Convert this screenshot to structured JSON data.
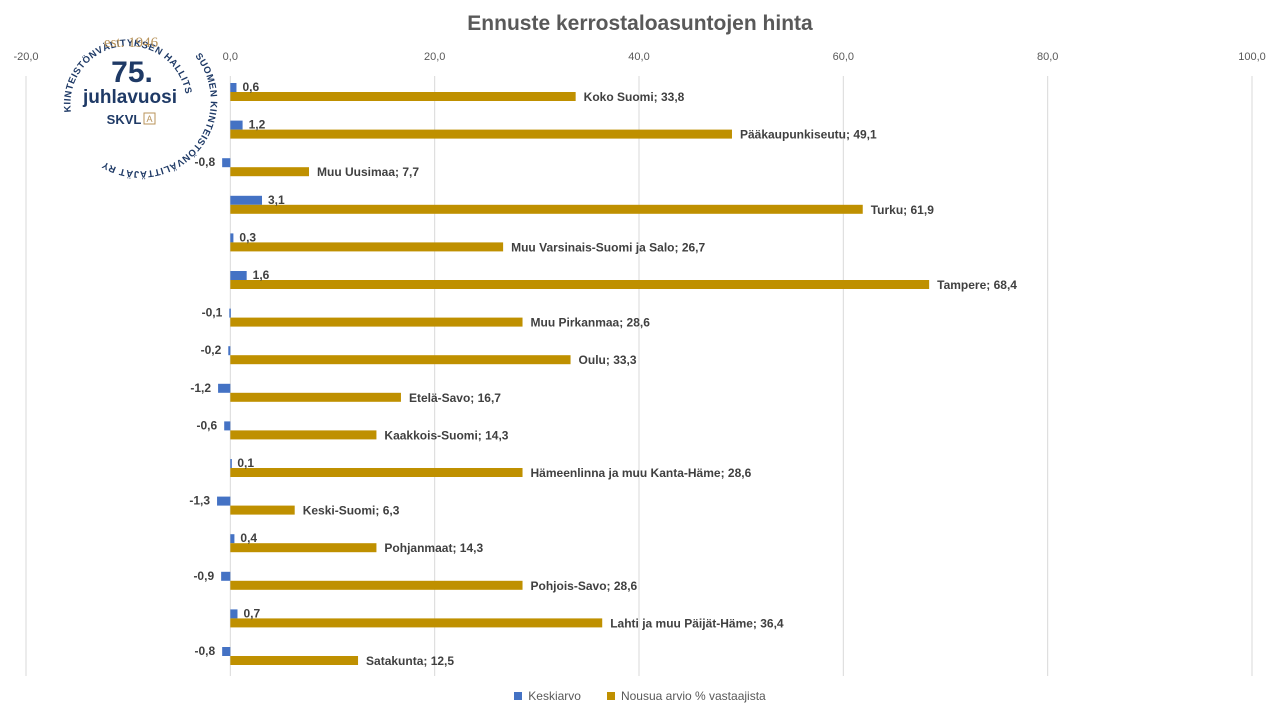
{
  "chart_data": {
    "type": "bar",
    "orientation": "horizontal",
    "title": "Ennuste kerrostaloasuntojen hinta",
    "xlim": [
      -20,
      100
    ],
    "x_ticks": [
      "-20,0",
      "0,0",
      "20,0",
      "40,0",
      "60,0",
      "80,0",
      "100,0"
    ],
    "x_tick_values": [
      -20,
      0,
      20,
      40,
      60,
      80,
      100
    ],
    "grid": true,
    "legend_position": "bottom",
    "categories": [
      "Koko Suomi",
      "Pääkaupunkiseutu",
      "Muu Uusimaa",
      "Turku",
      "Muu Varsinais-Suomi ja Salo",
      "Tampere",
      "Muu Pirkanmaa",
      "Oulu",
      "Etelä-Savo",
      "Kaakkois-Suomi",
      "Hämeenlinna ja muu Kanta-Häme",
      "Keski-Suomi",
      "Pohjanmaat",
      "Pohjois-Savo",
      "Lahti ja muu Päijät-Häme",
      "Satakunta"
    ],
    "series": [
      {
        "name": "Keskiarvo",
        "color": "#4472c4",
        "values": [
          0.6,
          1.2,
          -0.8,
          3.1,
          0.3,
          1.6,
          -0.1,
          -0.2,
          -1.2,
          -0.6,
          0.1,
          -1.3,
          0.4,
          -0.9,
          0.7,
          -0.8
        ],
        "labels": [
          "0,6",
          "1,2",
          "-0,8",
          "3,1",
          "0,3",
          "1,6",
          "-0,1",
          "-0,2",
          "-1,2",
          "-0,6",
          "0,1",
          "-1,3",
          "0,4",
          "-0,9",
          "0,7",
          "-0,8"
        ]
      },
      {
        "name": "Nousua arvio % vastaajista",
        "color": "#bf9000",
        "values": [
          33.8,
          49.1,
          7.7,
          61.9,
          26.7,
          68.4,
          28.6,
          33.3,
          16.7,
          14.3,
          28.6,
          6.3,
          14.3,
          28.6,
          36.4,
          12.5
        ],
        "labels": [
          "Koko Suomi; 33,8",
          "Pääkaupunkiseutu; 49,1",
          "Muu Uusimaa; 7,7",
          "Turku; 61,9",
          "Muu Varsinais-Suomi ja Salo; 26,7",
          "Tampere; 68,4",
          "Muu Pirkanmaa;  28,6",
          "Oulu; 33,3",
          "Etelä-Savo; 16,7",
          "Kaakkois-Suomi; 14,3",
          "Hämeenlinna ja muu Kanta-Häme; 28,6",
          "Keski-Suomi; 6,3",
          "Pohjanmaat; 14,3",
          "Pohjois-Savo; 28,6",
          "Lahti ja muu Päijät-Häme;  36,4",
          "Satakunta; 12,5"
        ]
      }
    ]
  },
  "logo": {
    "arc_top": "KIINTEISTÖNVÄLITYKSEN HALLITSIJA",
    "arc_right": "SUOMEN KIINTEISTÖNVÄLITTÄJÄT RY",
    "est": "est. 1946",
    "number": "75.",
    "jubilee": "juhlavuosi",
    "brand": "SKVL",
    "brand_badge": "A"
  }
}
